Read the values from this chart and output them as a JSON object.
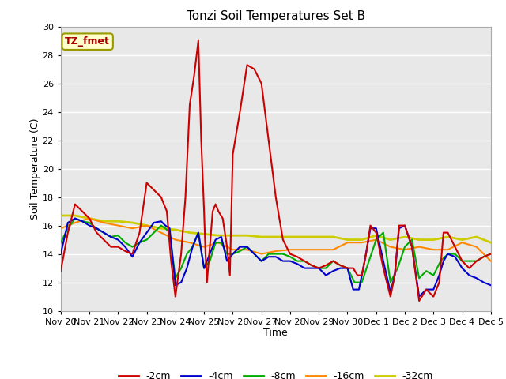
{
  "title": "Tonzi Soil Temperatures Set B",
  "xlabel": "Time",
  "ylabel": "Soil Temperature (C)",
  "xlim": [
    0,
    15
  ],
  "ylim": [
    10,
    30
  ],
  "yticks": [
    10,
    12,
    14,
    16,
    18,
    20,
    22,
    24,
    26,
    28,
    30
  ],
  "xtick_labels": [
    "Nov 20",
    "Nov 21",
    "Nov 22",
    "Nov 23",
    "Nov 24",
    "Nov 25",
    "Nov 26",
    "Nov 27",
    "Nov 28",
    "Nov 29",
    "Nov 30",
    "Dec 1",
    "Dec 2",
    "Dec 3",
    "Dec 4",
    "Dec 5"
  ],
  "bg_color": "#e8e8e8",
  "grid_color": "#ffffff",
  "annotation_text": "TZ_fmet",
  "annotation_color": "#aa0000",
  "annotation_bg": "#ffffcc",
  "annotation_border": "#999900",
  "series_2cm": {
    "color": "#cc0000",
    "lw": 1.5,
    "x": [
      0.0,
      0.25,
      0.5,
      0.75,
      1.0,
      1.25,
      1.5,
      1.75,
      2.0,
      2.25,
      2.5,
      2.75,
      3.0,
      3.25,
      3.5,
      3.6,
      3.7,
      3.85,
      4.0,
      4.1,
      4.2,
      4.35,
      4.5,
      4.65,
      4.8,
      4.9,
      5.0,
      5.05,
      5.1,
      5.2,
      5.3,
      5.4,
      5.5,
      5.65,
      5.8,
      5.9,
      6.0,
      6.25,
      6.5,
      6.75,
      7.0,
      7.25,
      7.5,
      7.75,
      8.0,
      8.25,
      8.5,
      8.75,
      9.0,
      9.25,
      9.5,
      9.75,
      10.0,
      10.2,
      10.35,
      10.5,
      10.65,
      10.8,
      11.0,
      11.25,
      11.5,
      11.65,
      11.8,
      12.0,
      12.25,
      12.5,
      12.75,
      13.0,
      13.2,
      13.35,
      13.5,
      13.75,
      14.0,
      14.25,
      14.5,
      14.75,
      15.0
    ],
    "y": [
      12.8,
      15.5,
      17.5,
      17.0,
      16.5,
      15.5,
      15.0,
      14.5,
      14.5,
      14.2,
      14.0,
      15.5,
      19.0,
      18.5,
      18.0,
      17.5,
      17.0,
      13.5,
      11.0,
      12.5,
      14.0,
      18.0,
      24.5,
      26.5,
      29.0,
      22.0,
      17.0,
      14.0,
      12.0,
      14.5,
      17.0,
      17.5,
      17.0,
      16.5,
      14.5,
      12.5,
      21.0,
      24.0,
      27.3,
      27.0,
      26.0,
      22.0,
      18.0,
      15.0,
      14.0,
      13.8,
      13.5,
      13.2,
      13.0,
      13.2,
      13.5,
      13.2,
      13.0,
      13.0,
      12.5,
      12.5,
      14.0,
      16.0,
      15.5,
      13.0,
      11.0,
      12.5,
      16.0,
      16.0,
      14.5,
      10.7,
      11.5,
      11.0,
      12.0,
      15.5,
      15.5,
      14.5,
      13.5,
      13.0,
      13.5,
      13.8,
      14.0
    ]
  },
  "series_4cm": {
    "color": "#0000cc",
    "lw": 1.5,
    "x": [
      0.0,
      0.25,
      0.5,
      0.75,
      1.0,
      1.25,
      1.5,
      1.75,
      2.0,
      2.25,
      2.5,
      2.75,
      3.0,
      3.25,
      3.5,
      3.65,
      3.8,
      4.0,
      4.2,
      4.4,
      4.6,
      4.8,
      5.0,
      5.2,
      5.4,
      5.6,
      5.8,
      6.0,
      6.25,
      6.5,
      6.75,
      7.0,
      7.25,
      7.5,
      7.75,
      8.0,
      8.25,
      8.5,
      8.75,
      9.0,
      9.25,
      9.5,
      9.75,
      10.0,
      10.2,
      10.4,
      10.6,
      10.8,
      11.0,
      11.25,
      11.5,
      11.65,
      11.8,
      12.0,
      12.25,
      12.5,
      12.75,
      13.0,
      13.2,
      13.35,
      13.5,
      13.75,
      14.0,
      14.25,
      14.5,
      14.75,
      15.0
    ],
    "y": [
      14.0,
      16.2,
      16.5,
      16.3,
      16.0,
      15.8,
      15.5,
      15.2,
      15.0,
      14.5,
      13.8,
      14.8,
      15.5,
      16.2,
      16.3,
      16.0,
      15.8,
      11.8,
      12.0,
      13.0,
      14.5,
      15.5,
      13.0,
      14.0,
      15.0,
      15.2,
      13.5,
      14.0,
      14.5,
      14.5,
      14.0,
      13.5,
      13.8,
      13.8,
      13.5,
      13.5,
      13.3,
      13.0,
      13.0,
      13.0,
      12.5,
      12.8,
      13.0,
      13.0,
      11.5,
      11.5,
      13.5,
      15.8,
      15.8,
      13.5,
      11.3,
      12.5,
      15.8,
      16.0,
      14.5,
      11.0,
      11.5,
      11.5,
      12.5,
      13.5,
      14.0,
      13.8,
      13.0,
      12.5,
      12.3,
      12.0,
      11.8
    ]
  },
  "series_8cm": {
    "color": "#00aa00",
    "lw": 1.5,
    "x": [
      0.0,
      0.25,
      0.5,
      0.75,
      1.0,
      1.25,
      1.5,
      1.75,
      2.0,
      2.25,
      2.5,
      2.75,
      3.0,
      3.25,
      3.5,
      3.65,
      3.8,
      4.0,
      4.2,
      4.4,
      4.6,
      4.8,
      5.0,
      5.2,
      5.4,
      5.6,
      5.8,
      6.0,
      6.25,
      6.5,
      6.75,
      7.0,
      7.25,
      7.5,
      7.75,
      8.0,
      8.25,
      8.5,
      8.75,
      9.0,
      9.25,
      9.5,
      9.75,
      10.0,
      10.25,
      10.5,
      10.75,
      11.0,
      11.25,
      11.5,
      11.75,
      12.0,
      12.25,
      12.5,
      12.75,
      13.0,
      13.25,
      13.5,
      13.75,
      14.0,
      14.25,
      14.5,
      14.75,
      15.0
    ],
    "y": [
      14.8,
      15.8,
      16.5,
      16.3,
      16.2,
      15.8,
      15.5,
      15.2,
      15.3,
      14.8,
      14.5,
      14.8,
      15.0,
      15.5,
      16.0,
      15.8,
      15.5,
      12.3,
      13.0,
      14.0,
      14.5,
      15.5,
      13.0,
      13.5,
      14.8,
      14.8,
      14.0,
      14.0,
      14.2,
      14.5,
      14.0,
      13.5,
      14.0,
      14.0,
      14.0,
      13.8,
      13.5,
      13.5,
      13.2,
      13.0,
      13.0,
      13.5,
      13.2,
      13.0,
      12.0,
      12.0,
      13.5,
      15.0,
      15.5,
      12.0,
      13.0,
      14.5,
      15.0,
      12.3,
      12.8,
      12.5,
      13.5,
      14.0,
      14.0,
      13.5,
      13.5,
      13.5,
      13.8,
      14.0
    ]
  },
  "series_16cm": {
    "color": "#ff8800",
    "lw": 1.5,
    "x": [
      0.0,
      0.5,
      1.0,
      1.5,
      2.0,
      2.5,
      3.0,
      3.5,
      4.0,
      4.5,
      5.0,
      5.5,
      6.0,
      6.5,
      7.0,
      7.5,
      8.0,
      8.5,
      9.0,
      9.5,
      10.0,
      10.5,
      11.0,
      11.5,
      12.0,
      12.5,
      13.0,
      13.5,
      14.0,
      14.5,
      15.0
    ],
    "y": [
      15.8,
      16.2,
      16.5,
      16.2,
      16.0,
      15.8,
      16.0,
      15.5,
      15.0,
      14.8,
      14.5,
      14.8,
      14.3,
      14.3,
      14.0,
      14.2,
      14.3,
      14.3,
      14.3,
      14.3,
      14.8,
      14.8,
      15.0,
      14.5,
      14.3,
      14.5,
      14.3,
      14.3,
      14.8,
      14.5,
      13.5
    ]
  },
  "series_32cm": {
    "color": "#cccc00",
    "lw": 2.0,
    "x": [
      0.0,
      0.5,
      1.0,
      1.5,
      2.0,
      2.5,
      3.0,
      3.5,
      4.0,
      4.5,
      5.0,
      5.5,
      6.0,
      6.5,
      7.0,
      7.5,
      8.0,
      8.5,
      9.0,
      9.5,
      10.0,
      10.5,
      11.0,
      11.5,
      12.0,
      12.5,
      13.0,
      13.5,
      14.0,
      14.5,
      15.0
    ],
    "y": [
      16.7,
      16.7,
      16.5,
      16.3,
      16.3,
      16.2,
      16.0,
      15.8,
      15.7,
      15.5,
      15.4,
      15.3,
      15.3,
      15.3,
      15.2,
      15.2,
      15.2,
      15.2,
      15.2,
      15.2,
      15.0,
      15.0,
      15.3,
      15.0,
      15.2,
      15.0,
      15.0,
      15.2,
      15.0,
      15.2,
      14.8
    ]
  },
  "legend_entries": [
    {
      "label": "-2cm",
      "color": "#cc0000"
    },
    {
      "label": "-4cm",
      "color": "#0000cc"
    },
    {
      "label": "-8cm",
      "color": "#00aa00"
    },
    {
      "label": "-16cm",
      "color": "#ff8800"
    },
    {
      "label": "-32cm",
      "color": "#cccc00"
    }
  ]
}
